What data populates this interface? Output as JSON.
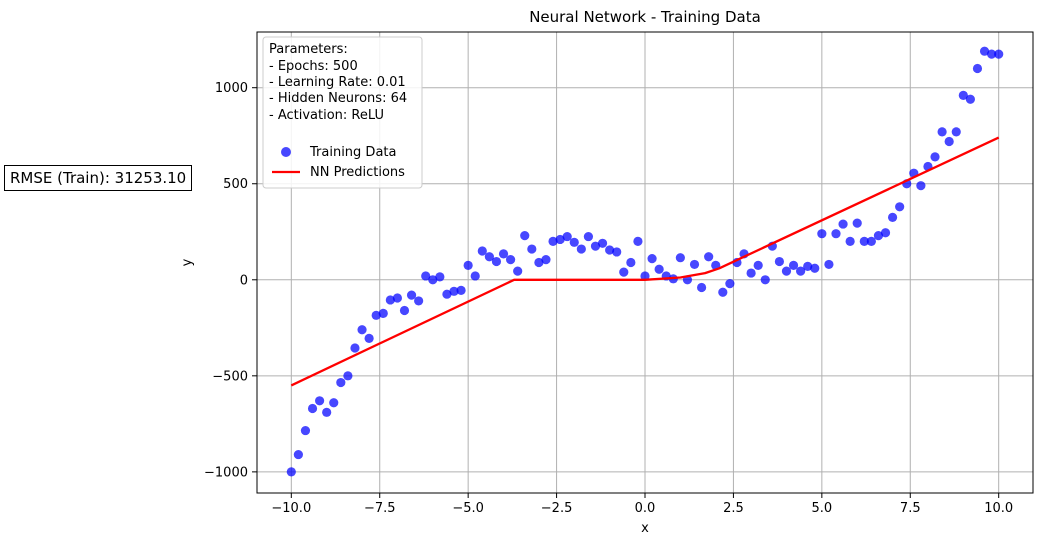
{
  "rmse_text": "RMSE (Train): 31253.10",
  "colors": {
    "points": "#0000ff",
    "line": "#ff0000",
    "grid": "#b0b0b0"
  },
  "chart_data": {
    "type": "scatter",
    "title": "Neural Network - Training Data",
    "xlabel": "x",
    "ylabel": "y",
    "xlim": [
      -10.97,
      10.97
    ],
    "ylim": [
      -1110,
      1290
    ],
    "xticks": [
      -10.0,
      -7.5,
      -5.0,
      -2.5,
      0.0,
      2.5,
      5.0,
      7.5,
      10.0
    ],
    "xtick_labels": [
      "−10.0",
      "−7.5",
      "−5.0",
      "−2.5",
      "0.0",
      "2.5",
      "5.0",
      "7.5",
      "10.0"
    ],
    "yticks": [
      -1000,
      -500,
      0,
      500,
      1000
    ],
    "ytick_labels": [
      "−1000",
      "−500",
      "0",
      "500",
      "1000"
    ],
    "grid": true,
    "legend_placement": "top-left",
    "parameters_text": [
      "Parameters:",
      "- Epochs: 500",
      "- Learning Rate: 0.01",
      "- Hidden Neurons: 64",
      "- Activation: ReLU"
    ],
    "series": [
      {
        "name": "Training Data",
        "kind": "scatter",
        "x": [
          -10.0,
          -9.8,
          -9.6,
          -9.4,
          -9.2,
          -9.0,
          -8.8,
          -8.6,
          -8.4,
          -8.2,
          -8.0,
          -7.8,
          -7.6,
          -7.4,
          -7.2,
          -7.0,
          -6.8,
          -6.6,
          -6.4,
          -6.2,
          -6.0,
          -5.8,
          -5.6,
          -5.4,
          -5.2,
          -5.0,
          -4.8,
          -4.6,
          -4.4,
          -4.2,
          -4.0,
          -3.8,
          -3.6,
          -3.4,
          -3.2,
          -3.0,
          -2.8,
          -2.6,
          -2.4,
          -2.2,
          -2.0,
          -1.8,
          -1.6,
          -1.4,
          -1.2,
          -1.0,
          -0.8,
          -0.6,
          -0.4,
          -0.2,
          0.0,
          0.2,
          0.4,
          0.6,
          0.8,
          1.0,
          1.2,
          1.4,
          1.6,
          1.8,
          2.0,
          2.2,
          2.4,
          2.6,
          2.8,
          3.0,
          3.2,
          3.4,
          3.6,
          3.8,
          4.0,
          4.2,
          4.4,
          4.6,
          4.8,
          5.0,
          5.2,
          5.4,
          5.6,
          5.8,
          6.0,
          6.2,
          6.4,
          6.6,
          6.8,
          7.0,
          7.2,
          7.4,
          7.6,
          7.8,
          8.0,
          8.2,
          8.4,
          8.6,
          8.8,
          9.0,
          9.2,
          9.4,
          9.6,
          9.8,
          10.0
        ],
        "y": [
          -1000,
          -910,
          -785,
          -670,
          -630,
          -690,
          -640,
          -535,
          -500,
          -355,
          -260,
          -305,
          -185,
          -175,
          -105,
          -95,
          -160,
          -80,
          -110,
          20,
          0,
          15,
          -75,
          -60,
          -55,
          75,
          20,
          150,
          120,
          95,
          135,
          105,
          45,
          230,
          160,
          90,
          105,
          200,
          210,
          225,
          195,
          160,
          225,
          175,
          190,
          155,
          145,
          40,
          90,
          200,
          20,
          110,
          55,
          20,
          5,
          115,
          0,
          80,
          -40,
          120,
          75,
          -65,
          -20,
          90,
          135,
          35,
          75,
          0,
          175,
          95,
          45,
          75,
          45,
          70,
          60,
          240,
          80,
          240,
          290,
          200,
          295,
          200,
          200,
          230,
          245,
          325,
          380,
          500,
          555,
          490,
          590,
          640,
          770,
          720,
          770,
          960,
          940,
          1100,
          1190,
          1175,
          1175
        ]
      },
      {
        "name": "NN Predictions",
        "kind": "line",
        "x": [
          -10.0,
          -3.7,
          0.0,
          1.0,
          1.7,
          2.1,
          10.0
        ],
        "y": [
          -550,
          0,
          0,
          12,
          35,
          60,
          740
        ]
      }
    ]
  }
}
